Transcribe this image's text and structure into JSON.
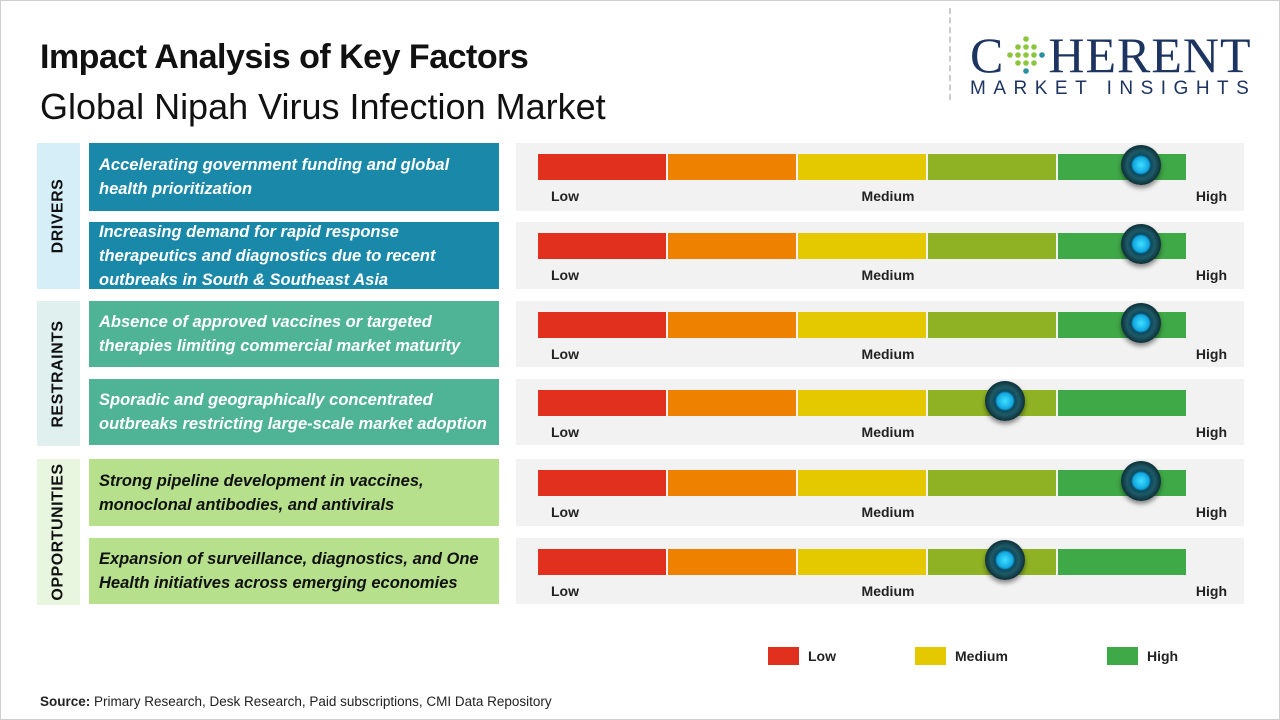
{
  "header": {
    "title": "Impact Analysis of Key Factors",
    "subtitle": "Global Nipah Virus Infection Market"
  },
  "logo": {
    "main_left": "C",
    "main_right": "HERENT",
    "sub": "MARKET INSIGHTS",
    "brand_color": "#1d3461"
  },
  "scale": {
    "low_label": "Low",
    "medium_label": "Medium",
    "high_label": "High",
    "segment_colors": [
      "#e2301f",
      "#ee8100",
      "#e5c900",
      "#8fb224",
      "#3fa847"
    ]
  },
  "groups": [
    {
      "label": "DRIVERS",
      "label_bg": "#d5eef8",
      "box_color": "#1a89a9",
      "text_color": "#ffffff",
      "factors": [
        {
          "text": "Accelerating government funding and global health prioritization",
          "impact_level": 0.93,
          "impact": "High"
        },
        {
          "text": "Increasing demand for rapid response therapeutics and diagnostics due to recent outbreaks in South & Southeast Asia",
          "impact_level": 0.93,
          "impact": "High"
        }
      ]
    },
    {
      "label": "RESTRAINTS",
      "label_bg": "#dff0ee",
      "box_color": "#4fb395",
      "text_color": "#ffffff",
      "factors": [
        {
          "text": "Absence of approved vaccines or targeted therapies limiting commercial market maturity",
          "impact_level": 0.93,
          "impact": "High"
        },
        {
          "text": "Sporadic and geographically concentrated outbreaks restricting large-scale market adoption",
          "impact_level": 0.72,
          "impact": "Medium-High"
        }
      ]
    },
    {
      "label": "OPPORTUNITIES",
      "label_bg": "#e9f6df",
      "box_color": "#b6e08c",
      "text_color": "#111111",
      "factors": [
        {
          "text": "Strong pipeline development in vaccines, monoclonal antibodies, and antivirals",
          "impact_level": 0.93,
          "impact": "High"
        },
        {
          "text": "Expansion of surveillance, diagnostics, and One Health initiatives across emerging economies",
          "impact_level": 0.72,
          "impact": "Medium-High"
        }
      ]
    }
  ],
  "legend": [
    {
      "label": "Low",
      "color": "#e2301f"
    },
    {
      "label": "Medium",
      "color": "#e5c900"
    },
    {
      "label": "High",
      "color": "#3fa847"
    }
  ],
  "source": {
    "label": "Source:",
    "text": " Primary Research, Desk Research, Paid subscriptions, CMI Data Repository"
  }
}
